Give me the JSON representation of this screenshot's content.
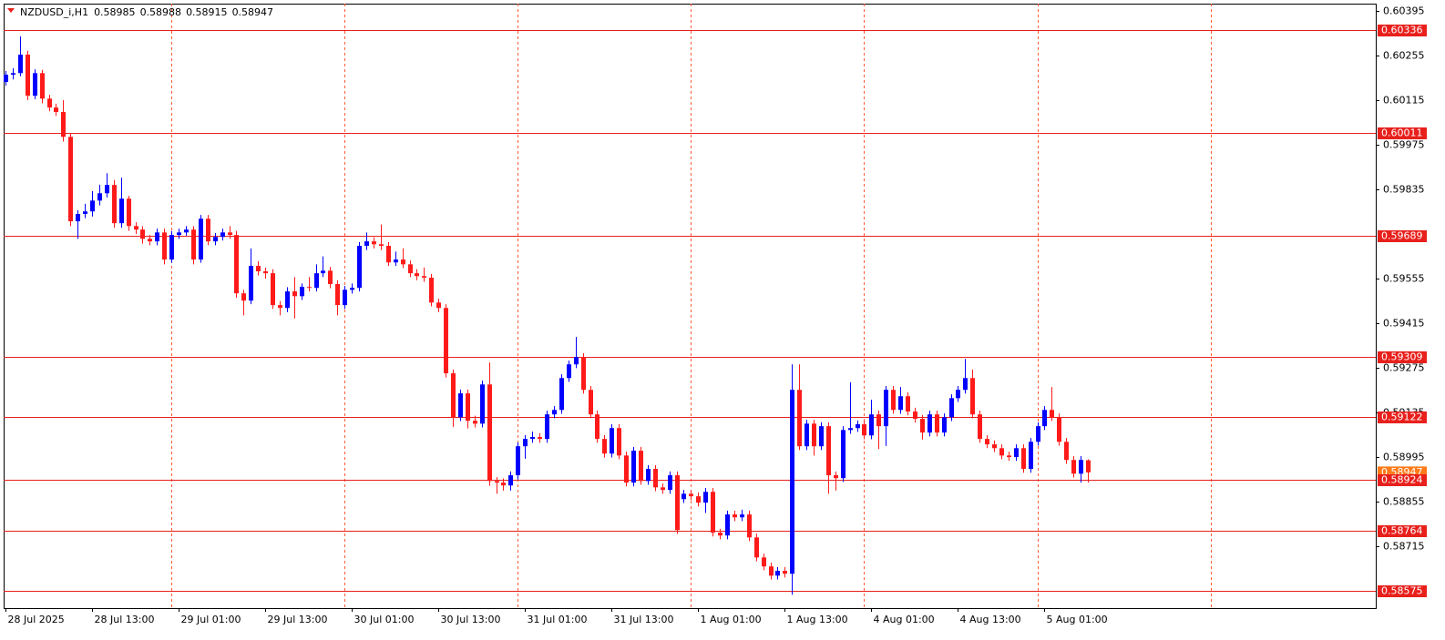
{
  "chart_data": {
    "type": "candlestick",
    "title": "NZDUSD_i,H1",
    "categories": [
      "28 Jul 2025",
      null,
      null,
      null,
      null,
      null,
      null,
      null,
      null,
      null,
      null,
      null,
      "28 Jul 13:00",
      null,
      null,
      null,
      null,
      null,
      null,
      null,
      null,
      null,
      null,
      null,
      "29 Jul 01:00",
      null,
      null,
      null,
      null,
      null,
      null,
      null,
      null,
      null,
      null,
      null,
      "29 Jul 13:00",
      null,
      null,
      null,
      null,
      null,
      null,
      null,
      null,
      null,
      null,
      null,
      "30 Jul 01:00",
      null,
      null,
      null,
      null,
      null,
      null,
      null,
      null,
      null,
      null,
      null,
      "30 Jul 13:00",
      null,
      null,
      null,
      null,
      null,
      null,
      null,
      null,
      null,
      null,
      null,
      "31 Jul 01:00",
      null,
      null,
      null,
      null,
      null,
      null,
      null,
      null,
      null,
      null,
      null,
      "31 Jul 13:00",
      null,
      null,
      null,
      null,
      null,
      null,
      null,
      null,
      null,
      null,
      null,
      "1 Aug 01:00",
      null,
      null,
      null,
      null,
      null,
      null,
      null,
      null,
      null,
      null,
      null,
      "1 Aug 13:00",
      null,
      null,
      null,
      null,
      null,
      null,
      null,
      null,
      null,
      null,
      null,
      "4 Aug 01:00",
      null,
      null,
      null,
      null,
      null,
      null,
      null,
      null,
      null,
      null,
      null,
      "4 Aug 13:00",
      null,
      null,
      null,
      null,
      null,
      null,
      null,
      null,
      null,
      null,
      null,
      "5 Aug 01:00",
      null,
      null,
      null,
      null,
      null,
      null
    ],
    "open": [
      0.60172,
      0.60195,
      0.602,
      0.60258,
      0.60129,
      0.602,
      0.6012,
      0.60092,
      0.60078,
      0.6,
      0.59735,
      0.59758,
      0.59766,
      0.598,
      0.59823,
      0.59849,
      0.59729,
      0.59806,
      0.5972,
      0.59709,
      0.5968,
      0.59672,
      0.597,
      0.59615,
      0.59692,
      0.597,
      0.59709,
      0.59615,
      0.59743,
      0.59672,
      0.59686,
      0.597,
      0.59692,
      0.59509,
      0.59486,
      0.59595,
      0.59578,
      0.59572,
      0.59472,
      0.59463,
      0.59515,
      0.595,
      0.59529,
      0.59526,
      0.59572,
      0.5958,
      0.59538,
      0.59472,
      0.5952,
      0.59526,
      0.59658,
      0.59672,
      0.59663,
      0.59658,
      0.59606,
      0.59615,
      0.596,
      0.59572,
      0.59563,
      0.59558,
      0.5948,
      0.59463,
      0.59258,
      0.5912,
      0.59195,
      0.59109,
      0.591,
      0.59223,
      0.5892,
      0.58915,
      0.58906,
      0.58938,
      0.59029,
      0.59052,
      0.59058,
      0.59052,
      0.59129,
      0.59143,
      0.59243,
      0.59286,
      0.59309,
      0.59206,
      0.59129,
      0.59052,
      0.59006,
      0.59086,
      0.59,
      0.58915,
      0.59015,
      0.5892,
      0.58958,
      0.589,
      0.58892,
      0.58938,
      0.58863,
      0.5888,
      0.58872,
      0.58852,
      0.58886,
      0.58758,
      0.58749,
      0.58815,
      0.58806,
      0.58815,
      0.58743,
      0.5868,
      0.58652,
      0.58623,
      0.58638,
      0.58629,
      0.59206,
      0.59029,
      0.591,
      0.59029,
      0.59092,
      0.58938,
      0.58929,
      0.5908,
      0.59086,
      0.59098,
      0.59063,
      0.59129,
      0.59092,
      0.59206,
      0.59143,
      0.59186,
      0.59138,
      0.59115,
      0.59072,
      0.59129,
      0.59072,
      0.5912,
      0.5918,
      0.59206,
      0.59243,
      0.59129,
      0.59052,
      0.59035,
      0.59023,
      0.59,
      0.58995,
      0.59023,
      0.58958,
      0.59043,
      0.59092,
      0.59143,
      0.5912,
      0.59043,
      0.58986,
      0.58943,
      0.58985
    ],
    "high": [
      0.60207,
      0.60215,
      0.60315,
      0.6027,
      0.60212,
      0.6021,
      0.60132,
      0.60104,
      0.60115,
      0.6001,
      0.5977,
      0.5979,
      0.5983,
      0.5985,
      0.59886,
      0.59865,
      0.59872,
      0.59815,
      0.59732,
      0.5972,
      0.59692,
      0.59712,
      0.59712,
      0.59705,
      0.59712,
      0.5972,
      0.5972,
      0.59755,
      0.59755,
      0.59698,
      0.59712,
      0.5972,
      0.59705,
      0.5952,
      0.5965,
      0.5961,
      0.5959,
      0.59585,
      0.59485,
      0.59528,
      0.5956,
      0.5954,
      0.5956,
      0.596,
      0.59625,
      0.59592,
      0.5955,
      0.59532,
      0.5954,
      0.5967,
      0.597,
      0.59685,
      0.59725,
      0.5967,
      0.5964,
      0.5965,
      0.59612,
      0.59585,
      0.5959,
      0.5957,
      0.59492,
      0.59475,
      0.5927,
      0.59207,
      0.59207,
      0.59125,
      0.59235,
      0.59292,
      0.58932,
      0.58928,
      0.5895,
      0.59041,
      0.59064,
      0.59075,
      0.5907,
      0.59141,
      0.59155,
      0.59255,
      0.59298,
      0.59372,
      0.59321,
      0.59218,
      0.59141,
      0.59064,
      0.59098,
      0.59098,
      0.59012,
      0.59027,
      0.59027,
      0.5897,
      0.5897,
      0.58912,
      0.5895,
      0.5895,
      0.58892,
      0.58892,
      0.58884,
      0.58898,
      0.58898,
      0.5877,
      0.58827,
      0.58827,
      0.5883,
      0.58827,
      0.58755,
      0.58692,
      0.58664,
      0.5865,
      0.5865,
      0.59286,
      0.59286,
      0.59112,
      0.59112,
      0.59104,
      0.59104,
      0.5895,
      0.59092,
      0.5923,
      0.5911,
      0.5911,
      0.59175,
      0.59141,
      0.59218,
      0.59218,
      0.59215,
      0.59198,
      0.5915,
      0.59127,
      0.59141,
      0.59141,
      0.59132,
      0.59192,
      0.59218,
      0.59303,
      0.5927,
      0.59141,
      0.59064,
      0.59047,
      0.59035,
      0.59012,
      0.59035,
      0.59035,
      0.59055,
      0.59104,
      0.59155,
      0.59215,
      0.59132,
      0.59055,
      0.58998,
      0.58998,
      0.58988
    ],
    "low": [
      0.6016,
      0.6018,
      0.6019,
      0.60115,
      0.60118,
      0.60105,
      0.6008,
      0.60066,
      0.59985,
      0.5972,
      0.5968,
      0.59745,
      0.5975,
      0.59785,
      0.5981,
      0.59715,
      0.59715,
      0.59705,
      0.59695,
      0.59665,
      0.5966,
      0.5966,
      0.596,
      0.59605,
      0.5968,
      0.5969,
      0.596,
      0.59605,
      0.5966,
      0.5966,
      0.59675,
      0.5968,
      0.59495,
      0.5944,
      0.59475,
      0.59565,
      0.59555,
      0.5946,
      0.5944,
      0.5945,
      0.5943,
      0.59488,
      0.59515,
      0.59515,
      0.5956,
      0.59525,
      0.5944,
      0.5946,
      0.59508,
      0.59515,
      0.59645,
      0.5965,
      0.59645,
      0.59595,
      0.59595,
      0.59588,
      0.5956,
      0.5955,
      0.59545,
      0.59468,
      0.5945,
      0.59245,
      0.5909,
      0.59108,
      0.59085,
      0.59088,
      0.59088,
      0.58905,
      0.5888,
      0.5889,
      0.5889,
      0.58925,
      0.5899,
      0.5904,
      0.5904,
      0.5904,
      0.59117,
      0.59131,
      0.59231,
      0.59274,
      0.59194,
      0.59117,
      0.5904,
      0.58994,
      0.58994,
      0.58988,
      0.58903,
      0.58903,
      0.58908,
      0.58908,
      0.58888,
      0.5888,
      0.5888,
      0.58754,
      0.58851,
      0.5886,
      0.5884,
      0.5882,
      0.58746,
      0.58737,
      0.58737,
      0.58794,
      0.58794,
      0.58731,
      0.58668,
      0.5864,
      0.58611,
      0.58611,
      0.58617,
      0.58563,
      0.59017,
      0.59017,
      0.59,
      0.59017,
      0.5888,
      0.5889,
      0.58917,
      0.59068,
      0.59074,
      0.59051,
      0.59051,
      0.5902,
      0.5903,
      0.59131,
      0.59131,
      0.59126,
      0.59103,
      0.5905,
      0.5906,
      0.5906,
      0.5906,
      0.59108,
      0.59168,
      0.59194,
      0.59117,
      0.5904,
      0.59023,
      0.59011,
      0.58988,
      0.58983,
      0.58983,
      0.58946,
      0.58946,
      0.59031,
      0.5908,
      0.59108,
      0.59031,
      0.58974,
      0.58931,
      0.58915,
      0.58915
    ],
    "close": [
      0.60195,
      0.602,
      0.60258,
      0.60129,
      0.602,
      0.6012,
      0.60092,
      0.60078,
      0.6,
      0.59735,
      0.59758,
      0.59766,
      0.598,
      0.59823,
      0.59849,
      0.59729,
      0.59806,
      0.5972,
      0.59709,
      0.5968,
      0.59672,
      0.597,
      0.59615,
      0.59692,
      0.597,
      0.59709,
      0.59615,
      0.59743,
      0.59672,
      0.59686,
      0.597,
      0.59692,
      0.59509,
      0.59486,
      0.59595,
      0.59578,
      0.59572,
      0.59472,
      0.59463,
      0.59515,
      0.595,
      0.59529,
      0.59526,
      0.59572,
      0.5958,
      0.59538,
      0.59472,
      0.5952,
      0.59526,
      0.59658,
      0.59672,
      0.59663,
      0.59658,
      0.59606,
      0.59615,
      0.596,
      0.59572,
      0.59563,
      0.59558,
      0.5948,
      0.59463,
      0.59258,
      0.5912,
      0.59195,
      0.59109,
      0.591,
      0.59223,
      0.5892,
      0.58915,
      0.58906,
      0.58938,
      0.59029,
      0.59052,
      0.59058,
      0.59052,
      0.59129,
      0.59143,
      0.59243,
      0.59286,
      0.59309,
      0.59206,
      0.59129,
      0.59052,
      0.59006,
      0.59086,
      0.59,
      0.58915,
      0.59015,
      0.5892,
      0.58958,
      0.589,
      0.58892,
      0.58938,
      0.58766,
      0.5888,
      0.58872,
      0.58852,
      0.58886,
      0.58758,
      0.58749,
      0.58815,
      0.58806,
      0.58815,
      0.58743,
      0.5868,
      0.58652,
      0.58623,
      0.58638,
      0.58629,
      0.59206,
      0.59029,
      0.591,
      0.59029,
      0.59092,
      0.58938,
      0.58929,
      0.5908,
      0.59086,
      0.59098,
      0.59063,
      0.59129,
      0.59092,
      0.59206,
      0.59143,
      0.59186,
      0.59138,
      0.59115,
      0.59072,
      0.59129,
      0.59072,
      0.5912,
      0.5918,
      0.59206,
      0.59243,
      0.59129,
      0.59052,
      0.59035,
      0.59023,
      0.59,
      0.58995,
      0.59023,
      0.58958,
      0.59043,
      0.59092,
      0.59143,
      0.5912,
      0.59043,
      0.58986,
      0.58943,
      0.58986,
      0.58947
    ],
    "up_color": "#0000ff",
    "down_color": "#ff1a1a",
    "ylim": [
      0.58521,
      0.60418
    ],
    "yticks": [
      0.60395,
      0.60255,
      0.60115,
      0.59975,
      0.59835,
      0.59555,
      0.59415,
      0.59275,
      0.59135,
      0.58995,
      0.58855,
      0.58715
    ],
    "levels": {
      "values": [
        0.60336,
        0.60011,
        0.59689,
        0.59309,
        0.59122,
        0.58924,
        0.58764,
        0.58575
      ],
      "color": "#e8201c"
    },
    "price_label_color": "#ff7a1a",
    "grid": true,
    "grid_color": "#ff5a36"
  }
}
